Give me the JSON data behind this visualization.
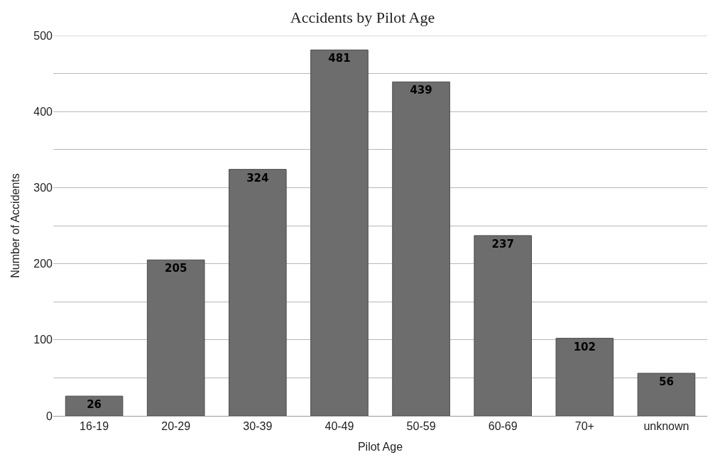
{
  "chart_data": {
    "type": "bar",
    "title": "Accidents by Pilot Age",
    "xlabel": "Pilot Age",
    "ylabel": "Number of Accidents",
    "categories": [
      "16-19",
      "20-29",
      "30-39",
      "40-49",
      "50-59",
      "60-69",
      "70+",
      "unknown"
    ],
    "values": [
      26,
      205,
      324,
      481,
      439,
      237,
      102,
      56
    ],
    "color": "#6d6d6d",
    "data_labels": true,
    "ylim": [
      0,
      500
    ],
    "yticks": [
      0,
      {
        "value": 50,
        "label": null
      },
      100,
      {
        "value": 150,
        "label": null
      },
      200,
      {
        "value": 250,
        "label": null
      },
      300,
      {
        "value": 350,
        "label": null
      },
      400,
      {
        "value": 450,
        "label": null
      },
      500
    ],
    "grid": "y"
  }
}
